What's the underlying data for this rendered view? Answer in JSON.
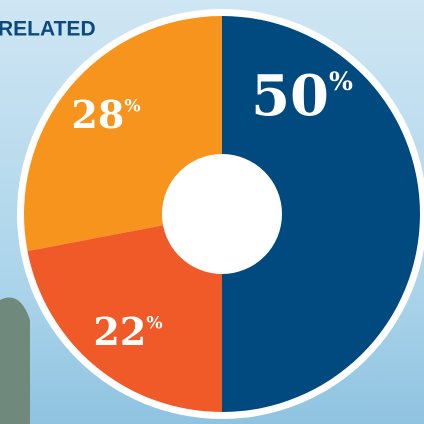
{
  "header": {
    "title": "RELATED"
  },
  "chart_data": {
    "type": "pie",
    "donut": true,
    "values": [
      50,
      22,
      28
    ],
    "value_labels": [
      "50%",
      "22%",
      "28%"
    ],
    "colors": [
      "#004a7f",
      "#f05a28",
      "#f7941d"
    ]
  }
}
